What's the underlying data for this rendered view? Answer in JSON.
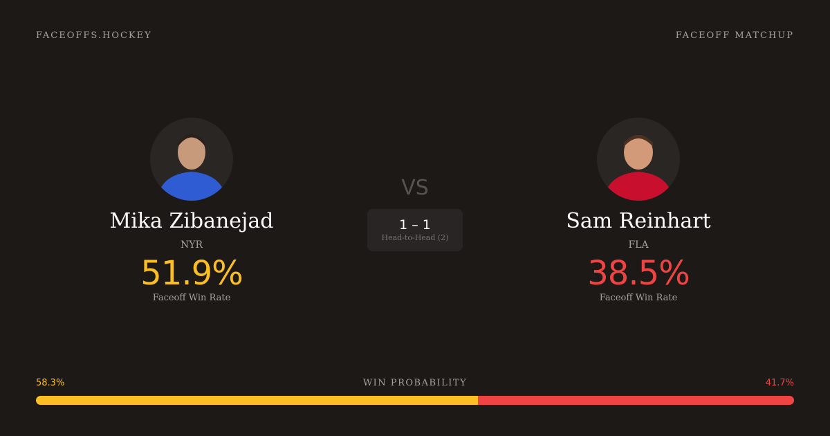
{
  "header": {
    "site": "FACEOFFS.HOCKEY",
    "section": "FACEOFF MATCHUP"
  },
  "players": [
    {
      "name": "Mika Zibanejad",
      "team": "NYR",
      "rate": "51.9%",
      "rate_label": "Faceoff Win Rate",
      "color": "#fbbf24",
      "jersey": "#2f5bd3"
    },
    {
      "name": "Sam Reinhart",
      "team": "FLA",
      "rate": "38.5%",
      "rate_label": "Faceoff Win Rate",
      "color": "#ef4444",
      "jersey": "#c8102e"
    }
  ],
  "versus": {
    "vs": "VS",
    "record": "1 – 1",
    "record_label": "Head-to-Head (2)"
  },
  "win_probability": {
    "title": "WIN PROBABILITY",
    "values": [
      58.3,
      41.7
    ],
    "value_labels": [
      "58.3%",
      "41.7%"
    ],
    "colors": [
      "#fbbf24",
      "#ef4444"
    ]
  }
}
